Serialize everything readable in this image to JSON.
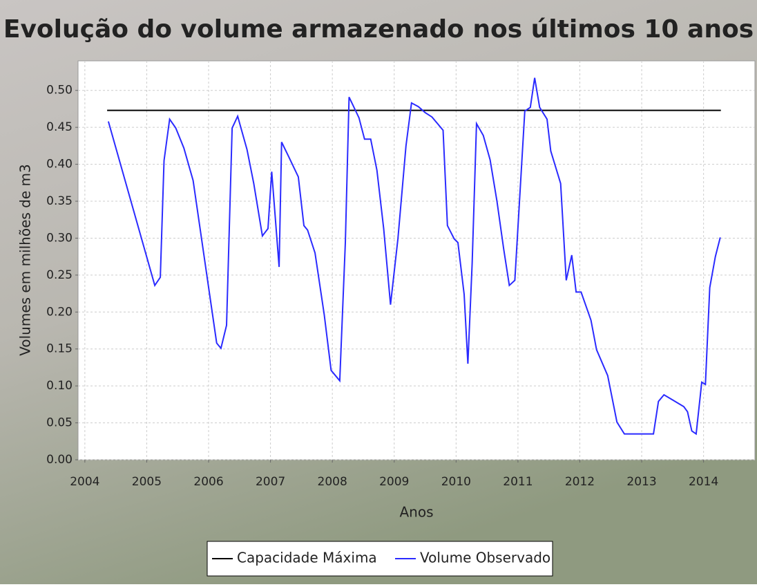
{
  "chart_data": {
    "type": "line",
    "title": "Evolução do volume armazenado nos últimos 10 anos",
    "xlabel": "Anos",
    "ylabel": "Volumes em milhões de m3",
    "xlim": [
      2003.89,
      2014.83
    ],
    "ylim": [
      0,
      0.54
    ],
    "xticks": [
      2004,
      2005,
      2006,
      2007,
      2008,
      2009,
      2010,
      2011,
      2012,
      2013,
      2014
    ],
    "yticks": [
      {
        "value": 0,
        "label": "0.00"
      },
      {
        "value": 0.05,
        "label": "0.05"
      },
      {
        "value": 0.1,
        "label": "0.10"
      },
      {
        "value": 0.15,
        "label": "0.15"
      },
      {
        "value": 0.2,
        "label": "0.20"
      },
      {
        "value": 0.25,
        "label": "0.25"
      },
      {
        "value": 0.3,
        "label": "0.30"
      },
      {
        "value": 0.35,
        "label": "0.35"
      },
      {
        "value": 0.4,
        "label": "0.40"
      },
      {
        "value": 0.45,
        "label": "0.45"
      },
      {
        "value": 0.5,
        "label": "0.50"
      }
    ],
    "grid": true,
    "legend": "bottom",
    "series": [
      {
        "name": "Capacidade Máxima",
        "color": "#000000",
        "x": [
          2004.36,
          2014.28
        ],
        "values": [
          0.473,
          0.473
        ]
      },
      {
        "name": "Volume Observado",
        "color": "#2a2aff",
        "x": [
          2004.38,
          2005.13,
          2005.22,
          2005.28,
          2005.37,
          2005.47,
          2005.6,
          2005.75,
          2006.13,
          2006.2,
          2006.29,
          2006.38,
          2006.47,
          2006.62,
          2006.73,
          2006.87,
          2006.96,
          2007.02,
          2007.14,
          2007.18,
          2007.29,
          2007.45,
          2007.54,
          2007.6,
          2007.72,
          2007.87,
          2007.98,
          2008.12,
          2008.21,
          2008.27,
          2008.43,
          2008.52,
          2008.62,
          2008.72,
          2008.83,
          2008.94,
          2009.06,
          2009.19,
          2009.28,
          2009.39,
          2009.5,
          2009.61,
          2009.79,
          2009.86,
          2009.97,
          2010.03,
          2010.13,
          2010.19,
          2010.26,
          2010.33,
          2010.44,
          2010.55,
          2010.66,
          2010.77,
          2010.86,
          2010.95,
          2011.11,
          2011.2,
          2011.27,
          2011.35,
          2011.47,
          2011.53,
          2011.69,
          2011.78,
          2011.87,
          2011.94,
          2012.02,
          2012.18,
          2012.27,
          2012.45,
          2012.6,
          2012.72,
          2013.19,
          2013.27,
          2013.36,
          2013.5,
          2013.68,
          2013.74,
          2013.81,
          2013.88,
          2013.97,
          2014.03,
          2014.1,
          2014.19,
          2014.27
        ],
        "values": [
          0.458,
          0.236,
          0.247,
          0.405,
          0.461,
          0.449,
          0.422,
          0.378,
          0.158,
          0.151,
          0.182,
          0.449,
          0.465,
          0.42,
          0.374,
          0.303,
          0.313,
          0.39,
          0.261,
          0.43,
          0.411,
          0.383,
          0.317,
          0.311,
          0.28,
          0.196,
          0.121,
          0.107,
          0.294,
          0.491,
          0.463,
          0.434,
          0.434,
          0.392,
          0.313,
          0.21,
          0.299,
          0.425,
          0.483,
          0.478,
          0.47,
          0.464,
          0.446,
          0.317,
          0.299,
          0.294,
          0.224,
          0.13,
          0.266,
          0.455,
          0.439,
          0.406,
          0.35,
          0.285,
          0.236,
          0.243,
          0.472,
          0.477,
          0.517,
          0.477,
          0.461,
          0.418,
          0.374,
          0.243,
          0.277,
          0.227,
          0.227,
          0.189,
          0.149,
          0.114,
          0.051,
          0.035,
          0.035,
          0.079,
          0.088,
          0.081,
          0.072,
          0.065,
          0.039,
          0.035,
          0.105,
          0.102,
          0.233,
          0.275,
          0.301
        ]
      }
    ]
  }
}
